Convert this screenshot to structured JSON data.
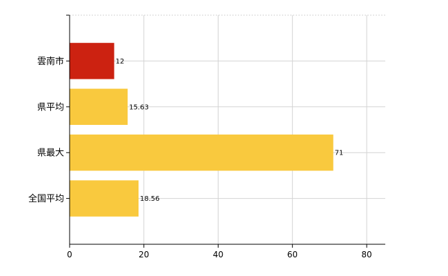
{
  "chart_data": {
    "type": "bar",
    "orientation": "horizontal",
    "categories": [
      "雲南市",
      "県平均",
      "県最大",
      "全国平均"
    ],
    "values": [
      12,
      15.63,
      71,
      18.56
    ],
    "data_labels": [
      "12",
      "15.63",
      "71",
      "18.56"
    ],
    "bar_colors": [
      "#cc2211",
      "#f9c93e",
      "#f9c93e",
      "#f9c93e"
    ],
    "xlim": [
      0,
      85
    ],
    "xticks": [
      0,
      20,
      40,
      60,
      80
    ],
    "title": "",
    "xlabel": "",
    "ylabel": "",
    "grid": true
  }
}
